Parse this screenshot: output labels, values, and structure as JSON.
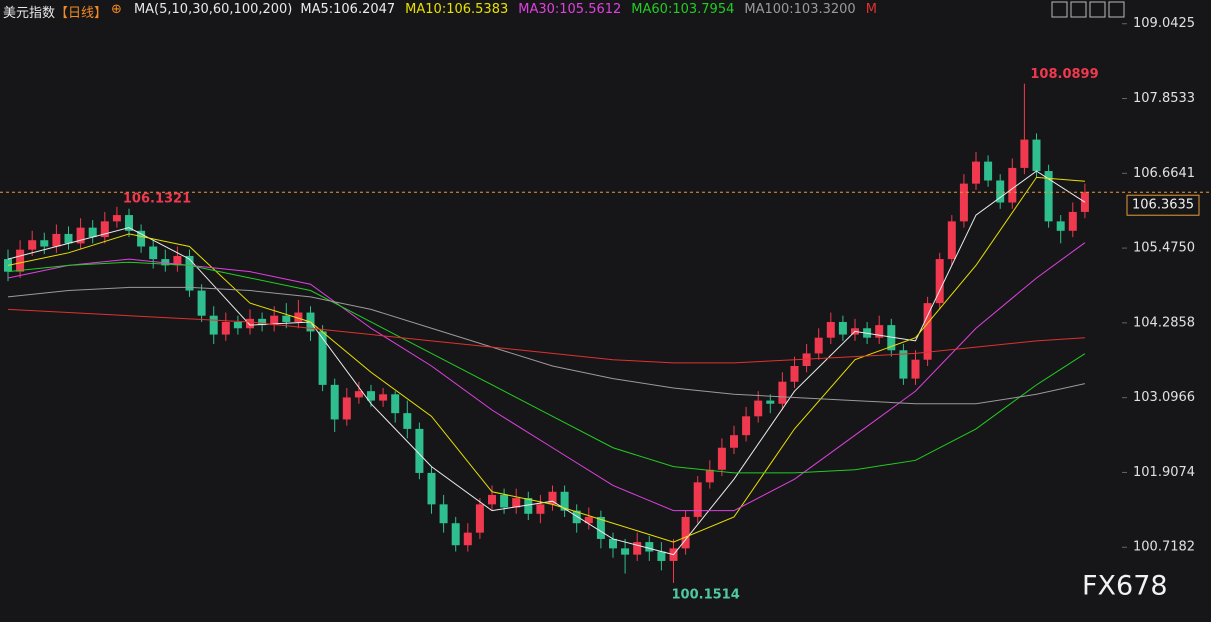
{
  "chart_data": {
    "type": "candlestick",
    "title": "美元指数",
    "period": "【日线】",
    "indicator": "MA(5,10,30,60,100,200)",
    "watermark": "FX678",
    "up_color": "#f0394f",
    "down_color": "#2fbf8f",
    "ylim": [
      99.72,
      109.42
    ],
    "yticks": [
      109.0425,
      107.8533,
      106.6641,
      {
        "value": 105.475,
        "label": "105.4750"
      },
      104.2858,
      103.0966,
      101.9074,
      100.7182
    ],
    "open": [
      105.3,
      105.1,
      105.45,
      105.6,
      105.5,
      105.7,
      105.55,
      105.8,
      105.65,
      105.9,
      106.0,
      105.75,
      105.5,
      105.3,
      105.2,
      105.35,
      104.8,
      104.4,
      104.1,
      104.3,
      104.2,
      104.35,
      104.25,
      104.4,
      104.3,
      104.45,
      104.15,
      103.3,
      102.75,
      103.1,
      103.2,
      103.05,
      103.15,
      102.85,
      102.6,
      101.9,
      101.4,
      101.1,
      100.75,
      100.95,
      101.4,
      101.55,
      101.35,
      101.5,
      101.25,
      101.4,
      101.6,
      101.3,
      101.1,
      101.2,
      100.85,
      100.7,
      100.6,
      100.8,
      100.65,
      100.5,
      100.7,
      101.2,
      101.75,
      101.95,
      102.3,
      102.5,
      102.8,
      103.05,
      103.0,
      103.35,
      103.6,
      103.8,
      104.05,
      104.3,
      104.1,
      104.2,
      104.05,
      104.25,
      103.85,
      103.4,
      103.7,
      104.6,
      105.3,
      105.9,
      106.5,
      106.85,
      106.55,
      106.2,
      106.75,
      107.2,
      106.7,
      105.9,
      105.75,
      106.05
    ],
    "high": [
      105.45,
      105.6,
      105.75,
      105.72,
      105.85,
      105.82,
      105.95,
      105.92,
      106.05,
      106.1321,
      106.1,
      105.85,
      105.6,
      105.45,
      105.5,
      105.45,
      104.9,
      104.55,
      104.45,
      104.4,
      104.5,
      104.45,
      104.55,
      104.6,
      104.65,
      104.55,
      104.25,
      103.4,
      103.25,
      103.35,
      103.3,
      103.25,
      103.2,
      103.05,
      102.7,
      102.0,
      101.55,
      101.2,
      101.1,
      101.5,
      101.7,
      101.65,
      101.65,
      101.6,
      101.55,
      101.7,
      101.7,
      101.4,
      101.35,
      101.3,
      100.95,
      100.85,
      100.95,
      100.9,
      100.8,
      100.85,
      101.3,
      101.85,
      102.1,
      102.45,
      102.65,
      102.95,
      103.2,
      103.15,
      103.5,
      103.75,
      103.95,
      104.2,
      104.45,
      104.4,
      104.35,
      104.3,
      104.4,
      104.35,
      103.95,
      103.85,
      104.7,
      105.4,
      106.0,
      106.65,
      107.0,
      106.95,
      106.65,
      106.9,
      108.0899,
      107.3,
      106.8,
      106.0,
      106.2,
      106.5
    ],
    "low": [
      104.95,
      105.0,
      105.35,
      105.38,
      105.4,
      105.45,
      105.45,
      105.55,
      105.55,
      105.8,
      105.65,
      105.4,
      105.15,
      105.1,
      105.1,
      104.7,
      104.3,
      103.95,
      104.0,
      104.1,
      104.1,
      104.15,
      104.15,
      104.2,
      104.2,
      104.0,
      103.2,
      102.55,
      102.65,
      103.0,
      102.95,
      102.95,
      102.7,
      102.45,
      101.8,
      101.25,
      100.95,
      100.65,
      100.65,
      100.85,
      101.3,
      101.25,
      101.25,
      101.15,
      101.1,
      101.3,
      101.2,
      100.95,
      101.0,
      100.7,
      100.55,
      100.3,
      100.5,
      100.5,
      100.35,
      100.1514,
      100.6,
      101.1,
      101.65,
      101.85,
      102.2,
      102.4,
      102.7,
      102.85,
      102.9,
      103.25,
      103.5,
      103.7,
      103.95,
      104.0,
      104.0,
      103.95,
      103.95,
      103.75,
      103.3,
      103.3,
      103.6,
      104.5,
      105.2,
      105.8,
      106.4,
      106.45,
      106.1,
      106.1,
      106.65,
      106.6,
      105.8,
      105.55,
      105.65,
      105.95
    ],
    "close": [
      105.1,
      105.45,
      105.6,
      105.5,
      105.7,
      105.55,
      105.8,
      105.65,
      105.9,
      106.0,
      105.75,
      105.5,
      105.3,
      105.2,
      105.35,
      104.8,
      104.4,
      104.1,
      104.3,
      104.2,
      104.35,
      104.25,
      104.4,
      104.3,
      104.45,
      104.15,
      103.3,
      102.75,
      103.1,
      103.2,
      103.05,
      103.15,
      102.85,
      102.6,
      101.9,
      101.4,
      101.1,
      100.75,
      100.95,
      101.4,
      101.55,
      101.35,
      101.5,
      101.25,
      101.4,
      101.6,
      101.3,
      101.1,
      101.2,
      100.85,
      100.7,
      100.6,
      100.8,
      100.65,
      100.5,
      100.7,
      101.2,
      101.75,
      101.95,
      102.3,
      102.5,
      102.8,
      103.05,
      103.0,
      103.35,
      103.6,
      103.8,
      104.05,
      104.3,
      104.1,
      104.2,
      104.05,
      104.25,
      103.85,
      103.4,
      103.7,
      104.6,
      105.3,
      105.9,
      106.5,
      106.85,
      106.55,
      106.2,
      106.75,
      107.2,
      106.7,
      105.9,
      105.75,
      106.05,
      106.3635
    ],
    "ma_x": [
      0,
      5,
      10,
      15,
      20,
      25,
      30,
      35,
      40,
      45,
      50,
      55,
      60,
      65,
      70,
      75,
      80,
      85,
      89
    ],
    "series": [
      {
        "name": "MA5:106.2047",
        "color": "#ececec",
        "values": [
          105.3,
          105.55,
          105.8,
          105.3,
          104.25,
          104.3,
          103.0,
          102.0,
          101.3,
          101.45,
          100.85,
          100.6,
          101.8,
          103.2,
          104.15,
          104.0,
          106.0,
          106.7,
          106.2047
        ]
      },
      {
        "name": "MA10:106.5383",
        "color": "#e8e000",
        "values": [
          105.2,
          105.4,
          105.7,
          105.5,
          104.6,
          104.3,
          103.5,
          102.8,
          101.6,
          101.4,
          101.1,
          100.8,
          101.2,
          102.6,
          103.7,
          104.05,
          105.2,
          106.6,
          106.5383
        ]
      },
      {
        "name": "MA30:105.5612",
        "color": "#e040e0",
        "values": [
          105.0,
          105.2,
          105.3,
          105.2,
          105.1,
          104.9,
          104.2,
          103.6,
          102.9,
          102.3,
          101.7,
          101.3,
          101.3,
          101.8,
          102.5,
          103.2,
          104.2,
          105.0,
          105.5612
        ]
      },
      {
        "name": "MA60:103.7954",
        "color": "#22cc22",
        "values": [
          105.1,
          105.2,
          105.25,
          105.2,
          105.0,
          104.8,
          104.3,
          103.8,
          103.3,
          102.8,
          102.3,
          102.0,
          101.9,
          101.9,
          101.95,
          102.1,
          102.6,
          103.3,
          103.7954
        ]
      },
      {
        "name": "MA100:103.3200",
        "color": "#9a9a9a",
        "values": [
          104.7,
          104.8,
          104.85,
          104.85,
          104.8,
          104.7,
          104.5,
          104.2,
          103.9,
          103.6,
          103.4,
          103.25,
          103.15,
          103.1,
          103.05,
          103.0,
          103.0,
          103.15,
          103.32
        ]
      },
      {
        "name": "M",
        "color": "#e03030",
        "values": [
          104.5,
          104.45,
          104.4,
          104.35,
          104.3,
          104.2,
          104.1,
          104.0,
          103.9,
          103.8,
          103.7,
          103.65,
          103.65,
          103.7,
          103.75,
          103.8,
          103.9,
          104.0,
          104.05
        ]
      }
    ]
  }
}
